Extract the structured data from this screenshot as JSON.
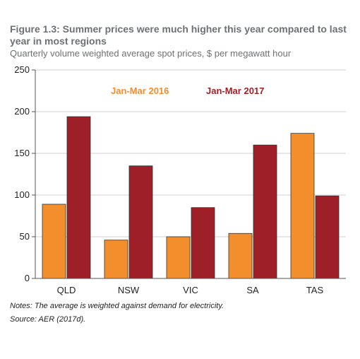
{
  "figure": {
    "title": "Figure 1.3: Summer prices were much higher this year compared to last year in most regions",
    "subtitle": "Quarterly volume weighted average spot prices, $ per megawatt hour"
  },
  "notes": {
    "notes_line": "Notes: The average is weighted against demand for electricity.",
    "source_line": "Source: AER (2017d)."
  },
  "chart_data": {
    "type": "bar",
    "categories": [
      "QLD",
      "NSW",
      "VIC",
      "SA",
      "TAS"
    ],
    "series": [
      {
        "name": "Jan-Mar 2016",
        "color": "#f28e2b",
        "values": [
          89,
          46,
          50,
          54,
          174
        ]
      },
      {
        "name": "Jan-Mar 2017",
        "color": "#9e1f28",
        "values": [
          194,
          135,
          85,
          160,
          99
        ]
      }
    ],
    "title": "",
    "xlabel": "",
    "ylabel": "",
    "ylim": [
      0,
      250
    ],
    "yticks": [
      "0",
      "50",
      "100",
      "150",
      "200",
      "250"
    ],
    "grid": true,
    "legend_position": "top-inside"
  }
}
